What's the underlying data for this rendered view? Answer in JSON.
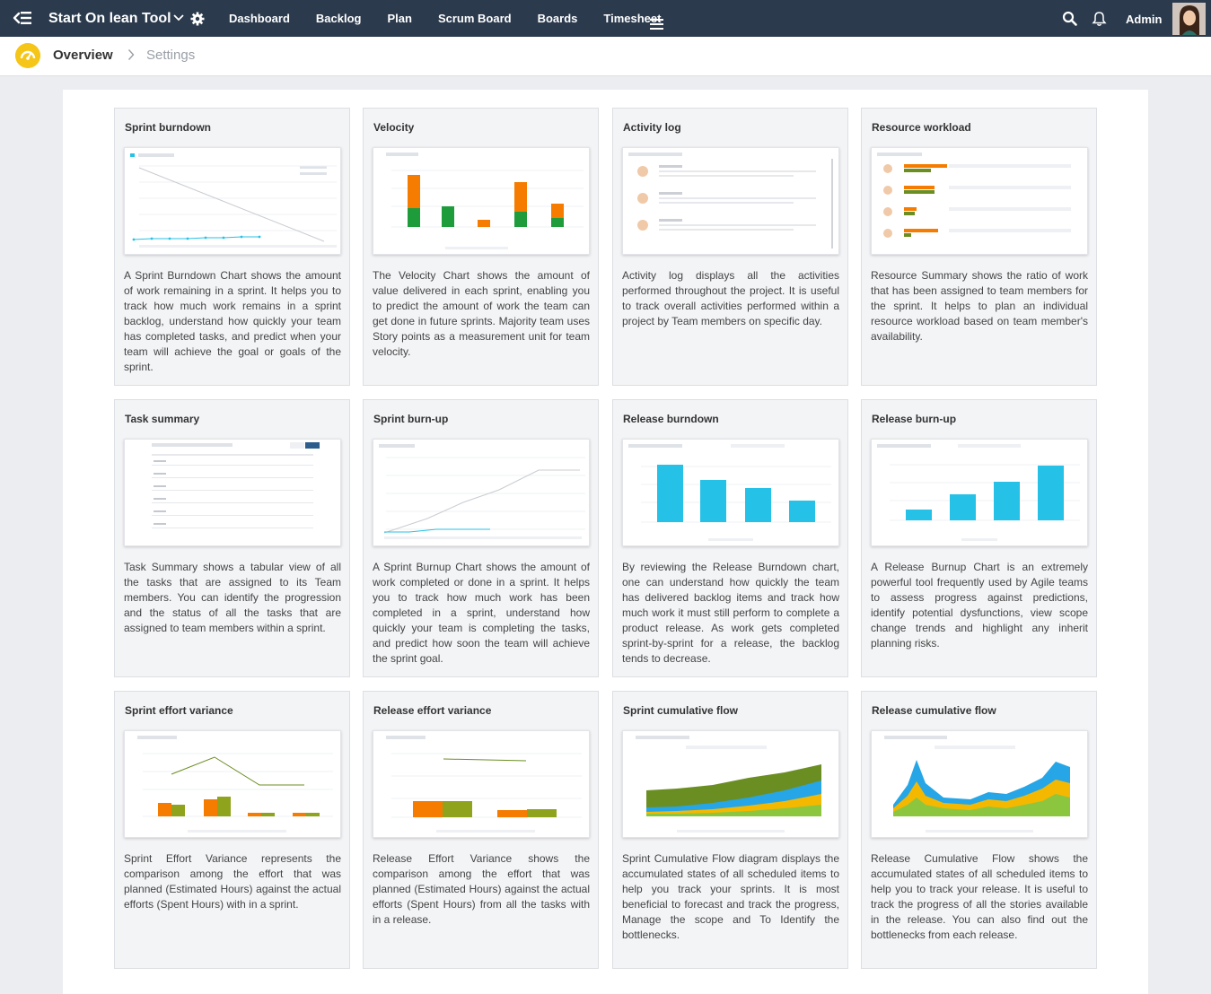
{
  "topbar": {
    "project_name": "Start On lean Tool",
    "nav": [
      "Dashboard",
      "Backlog",
      "Plan",
      "Scrum Board",
      "Boards",
      "Timesheet"
    ],
    "user": "Admin",
    "icons": [
      "back-menu-icon",
      "chevron-down-icon",
      "gear-icon",
      "hamburger-menu-icon",
      "search-icon",
      "bell-icon",
      "avatar"
    ]
  },
  "breadcrumb": {
    "current": "Overview",
    "next": "Settings",
    "icon": "gauge-icon"
  },
  "colors": {
    "topbar": "#2b3a4d",
    "page_background": "#ebedf0",
    "card_background": "#f3f4f6",
    "accent_yellow": "#f5c518",
    "chart_blue": "#26c1e6",
    "chart_green": "#1e9c3c",
    "chart_orange": "#f57c00",
    "chart_olive": "#6b8e23"
  },
  "cards": [
    {
      "title": "Sprint burndown",
      "thumbnail": "line-chart",
      "desc": "A Sprint Burndown Chart shows the amount of work remaining in a sprint. It helps you to track how much work remains in a sprint backlog, understand how quickly your team has completed tasks, and predict when your team will achieve the goal or goals of the sprint."
    },
    {
      "title": "Velocity",
      "thumbnail": "stacked-bar-chart",
      "desc": "The Velocity Chart shows the amount of value delivered in each sprint, enabling you to predict the amount of work the team can get done in future sprints. Majority team uses Story points as a measurement unit for team velocity."
    },
    {
      "title": "Activity log",
      "thumbnail": "activity-list",
      "desc": "Activity log displays all the activities performed throughout the project. It is useful to track overall activities performed within a project by Team members on specific day."
    },
    {
      "title": "Resource workload",
      "thumbnail": "workload-bars",
      "desc": "Resource Summary shows the ratio of work that has been assigned to team members for the sprint. It helps to plan an individual resource workload based on team member's availability."
    },
    {
      "title": "Task summary",
      "thumbnail": "table",
      "desc": "Task Summary shows a tabular view of all the tasks that are assigned to its Team members. You can identify the progression and the status of all the tasks that are assigned to team members within a sprint."
    },
    {
      "title": "Sprint burn-up",
      "thumbnail": "line-chart-up",
      "desc": "A Sprint Burnup Chart shows the amount of work completed or done in a sprint. It helps you to track how much work has been completed in a sprint, understand how quickly your team is completing the tasks, and predict how soon the team will achieve the sprint goal."
    },
    {
      "title": "Release burndown",
      "thumbnail": "bar-chart-down",
      "desc": "By reviewing the Release Burndown chart, one can understand how quickly the team has delivered backlog items and track how much work it must still perform to complete a product release. As work gets completed sprint-by-sprint for a release, the backlog tends to decrease."
    },
    {
      "title": "Release burn-up",
      "thumbnail": "bar-chart-up",
      "desc": "A Release Burnup Chart is an extremely powerful tool frequently used by Agile teams to assess progress against predictions, identify potential dysfunctions, view scope change trends and highlight any inherit planning risks."
    },
    {
      "title": "Sprint effort variance",
      "thumbnail": "grouped-bar-line",
      "desc": "Sprint Effort Variance represents the comparison among the effort that was planned (Estimated Hours) against the actual efforts (Spent Hours) with in a sprint."
    },
    {
      "title": "Release effort variance",
      "thumbnail": "grouped-bar-line-2",
      "desc": "Release Effort Variance shows the comparison among the effort that was planned (Estimated Hours) against the actual efforts (Spent Hours) from all the tasks with in a release."
    },
    {
      "title": "Sprint cumulative flow",
      "thumbnail": "stacked-area",
      "desc": "Sprint Cumulative Flow diagram displays the accumulated states of all scheduled items to help you track your sprints. It is most beneficial to forecast and track the progress, Manage the scope and To Identify the bottlenecks."
    },
    {
      "title": "Release cumulative flow",
      "thumbnail": "stacked-area-2",
      "desc": "Release Cumulative Flow shows the accumulated states of all scheduled items to help you to track your release. It is useful to track the progress of all the stories available in the release. You can also find out the bottlenecks from each release."
    }
  ]
}
